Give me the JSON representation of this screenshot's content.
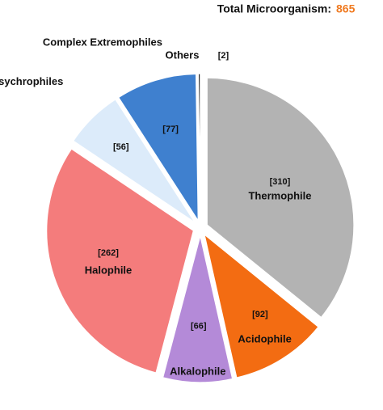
{
  "chart_data": {
    "type": "pie",
    "total": {
      "label": "Total Microorganism:",
      "value": 865
    },
    "categories": [
      "Thermophile",
      "Acidophile",
      "Alkalophile",
      "Halophile",
      "Psychrophiles",
      "Complex Extremophiles",
      "Others"
    ],
    "values": [
      310,
      92,
      66,
      262,
      56,
      77,
      2
    ],
    "value_labels": [
      "[310]",
      "[92]",
      "[66]",
      "[262]",
      "[56]",
      "[77]",
      "[2]"
    ],
    "colors": [
      "#b3b3b3",
      "#f36c12",
      "#b48ad8",
      "#f47c7c",
      "#dcebfa",
      "#3f80cf",
      "#111111"
    ]
  }
}
